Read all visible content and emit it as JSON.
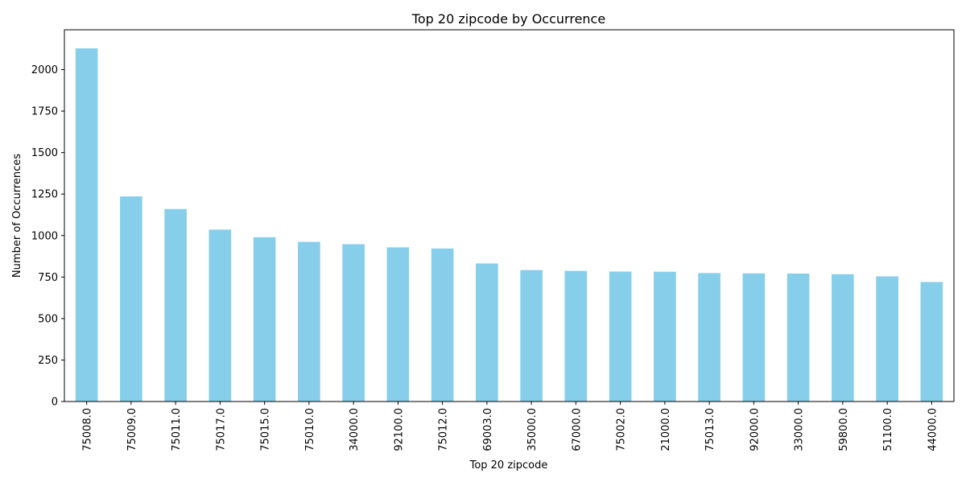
{
  "chart_data": {
    "type": "bar",
    "title": "Top 20 zipcode by Occurrence",
    "xlabel": "Top 20 zipcode",
    "ylabel": "Number of Occurrences",
    "categories": [
      "75008.0",
      "75009.0",
      "75011.0",
      "75017.0",
      "75015.0",
      "75010.0",
      "34000.0",
      "92100.0",
      "75012.0",
      "69003.0",
      "35000.0",
      "67000.0",
      "75002.0",
      "21000.0",
      "75013.0",
      "92000.0",
      "33000.0",
      "59800.0",
      "51100.0",
      "44000.0"
    ],
    "values": [
      2128,
      1236,
      1160,
      1036,
      990,
      962,
      948,
      929,
      922,
      832,
      792,
      787,
      783,
      782,
      774,
      772,
      771,
      767,
      754,
      720
    ],
    "ylim": [
      0,
      2240
    ],
    "yticks": [
      0,
      250,
      500,
      750,
      1000,
      1250,
      1500,
      1750,
      2000
    ],
    "grid": false,
    "bar_color": "#87ceeb"
  }
}
